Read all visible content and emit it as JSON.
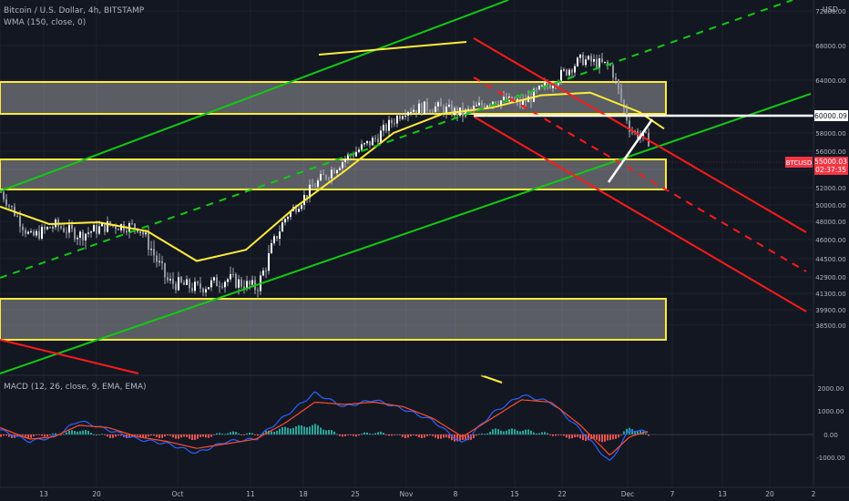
{
  "header": {
    "title": "Bitcoin / U.S. Dollar, 4h, BITSTAMP",
    "indicator": "WMA (150, close, 0)",
    "currency": "USD"
  },
  "macd_label": "MACD (12, 26, close, 9, EMA, EMA)",
  "colors": {
    "background": "#131722",
    "zone": "#ffeb3b",
    "wma": "#ffeb3b",
    "up_channel": "#13c913",
    "down_channel": "#ff1a1a",
    "candles": "#c9ccd3",
    "macd_line": "#2962ff",
    "signal_line": "#ff4d2e",
    "hist_up": "#26a69a",
    "hist_down": "#ef5350",
    "price_tag": "#f23645"
  },
  "chart_data": [
    {
      "type": "line",
      "title": "Bitcoin / U.S. Dollar, 4h, BITSTAMP",
      "y_ticks": [
        "72000.00",
        "68000.00",
        "64000.00",
        "60000.00",
        "58000.00",
        "56000.00",
        "54000.00",
        "52000.00",
        "50000.00",
        "48000.00",
        "46000.00",
        "44500.00",
        "42900.00",
        "41300.00",
        "39900.00",
        "38500.00"
      ],
      "x_ticks": [
        "",
        "13",
        "20",
        "Oct",
        "11",
        "18",
        "25",
        "Nov",
        "8",
        "15",
        "22",
        "Dec",
        "7",
        "13",
        "20",
        "2"
      ],
      "series": [
        {
          "name": "BTCUSD",
          "x": [
            0,
            6,
            11,
            16,
            22,
            28,
            34,
            40,
            46,
            52,
            58,
            64,
            70,
            76,
            82,
            88,
            94,
            100,
            106,
            112,
            118,
            124,
            128,
            132
          ],
          "values": [
            51500,
            46200,
            47600,
            46500,
            47600,
            47400,
            42400,
            41800,
            42700,
            41800,
            48600,
            52400,
            55200,
            57300,
            60700,
            61000,
            60200,
            61800,
            61400,
            63800,
            66400,
            65600,
            58300,
            57100
          ]
        },
        {
          "name": "WMA (150, close, 0)",
          "x": [
            0,
            10,
            20,
            30,
            40,
            50,
            60,
            70,
            80,
            90,
            100,
            110,
            120,
            130,
            135
          ],
          "values": [
            49800,
            47700,
            47900,
            46900,
            44300,
            45200,
            49700,
            53800,
            58000,
            60200,
            60900,
            62300,
            62600,
            60400,
            58500
          ]
        }
      ],
      "horizontal_lines": [
        {
          "label": "60000.09",
          "value": 60000.09
        }
      ],
      "price_label": {
        "symbol": "BTCUSD",
        "value": "55000.03",
        "countdown": "02:37:35"
      },
      "ylim": [
        38500,
        72000
      ]
    },
    {
      "type": "bar",
      "title": "MACD (12, 26, close, 9, EMA, EMA)",
      "y_ticks": [
        "2000.00",
        "1000.00",
        "0.00",
        "-1000.00"
      ],
      "series": [
        {
          "name": "MACD",
          "x": [
            0,
            6,
            11,
            16,
            22,
            28,
            34,
            40,
            46,
            52,
            58,
            64,
            70,
            76,
            82,
            88,
            94,
            100,
            106,
            112,
            118,
            124,
            128,
            132
          ],
          "values": [
            200,
            -300,
            -100,
            600,
            200,
            -200,
            -400,
            -800,
            -300,
            -200,
            800,
            1800,
            1200,
            1500,
            1100,
            600,
            -400,
            900,
            1700,
            1400,
            200,
            -1200,
            200,
            100
          ]
        },
        {
          "name": "Signal",
          "x": [
            0,
            6,
            11,
            16,
            22,
            28,
            34,
            40,
            46,
            52,
            58,
            64,
            70,
            76,
            82,
            88,
            94,
            100,
            106,
            112,
            118,
            124,
            128,
            132
          ],
          "values": [
            300,
            -200,
            -100,
            400,
            300,
            -100,
            -300,
            -600,
            -400,
            -200,
            500,
            1400,
            1300,
            1400,
            1200,
            700,
            -100,
            700,
            1500,
            1400,
            400,
            -900,
            -100,
            150
          ]
        }
      ],
      "ylim": [
        -1500,
        2500
      ]
    }
  ]
}
